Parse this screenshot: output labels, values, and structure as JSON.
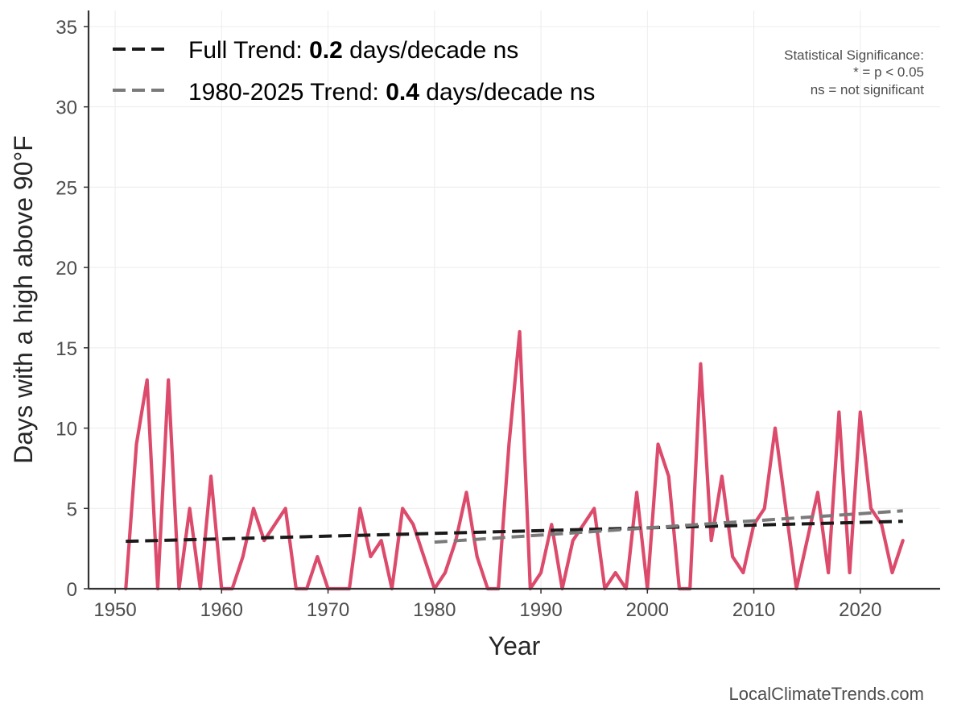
{
  "chart_data": {
    "type": "line",
    "xlabel": "Year",
    "ylabel": "Days with a high above 90°F",
    "xlim": [
      1947.5,
      2027.5
    ],
    "ylim": [
      0,
      36
    ],
    "x_ticks": [
      1950,
      1960,
      1970,
      1980,
      1990,
      2000,
      2010,
      2020
    ],
    "y_ticks": [
      0,
      5,
      10,
      15,
      20,
      25,
      30,
      35
    ],
    "grid": true,
    "colors": {
      "observed": "#dc4b6c",
      "full_trend": "#1a1a1a",
      "recent_trend": "#7a7a7a",
      "grid": "#ececec",
      "axis": "#333333"
    },
    "series": [
      {
        "x": [
          1951,
          1952,
          1953,
          1954,
          1955,
          1956,
          1957,
          1958,
          1959,
          1960,
          1961,
          1962,
          1963,
          1964,
          1966,
          1967,
          1968,
          1969,
          1970,
          1971,
          1972,
          1973,
          1974,
          1975,
          1976,
          1977,
          1978,
          1979,
          1980,
          1981,
          1982,
          1983,
          1984,
          1985,
          1986,
          1987,
          1988,
          1989,
          1990,
          1991,
          1992,
          1993,
          1994,
          1995,
          1996,
          1997,
          1998,
          1999,
          2000,
          2001,
          2002,
          2003,
          2004,
          2005,
          2006,
          2007,
          2008,
          2009,
          2010,
          2011,
          2012,
          2013,
          2014,
          2015,
          2016,
          2017,
          2018,
          2019,
          2020,
          2021,
          2022,
          2023,
          2024
        ],
        "values": [
          0,
          9,
          13,
          0,
          13,
          0,
          5,
          0,
          7,
          0,
          0,
          2,
          5,
          3,
          5,
          0,
          0,
          2,
          0,
          0,
          0,
          5,
          2,
          3,
          0,
          5,
          4,
          2,
          0,
          1,
          3,
          6,
          2,
          0,
          0,
          9,
          16,
          0,
          1,
          4,
          0,
          3,
          4,
          5,
          0,
          1,
          0,
          6,
          0,
          9,
          7,
          0,
          0,
          14,
          3,
          7,
          2,
          1,
          4,
          5,
          10,
          5,
          0,
          3,
          6,
          1,
          11,
          1,
          11,
          5,
          4,
          1,
          3
        ]
      }
    ],
    "trend_lines": [
      {
        "label": "Full Trend:",
        "value": "0.2",
        "unit": "days/decade ns",
        "style": "dashed",
        "x": [
          1951,
          2024
        ],
        "y": [
          2.95,
          4.2
        ]
      },
      {
        "label": "1980-2025 Trend:",
        "value": "0.4",
        "unit": "days/decade ns",
        "style": "dashed",
        "x": [
          1980,
          2024
        ],
        "y": [
          2.9,
          4.85
        ]
      }
    ],
    "annotation": {
      "lines": [
        "Statistical Significance:",
        "* = p < 0.05",
        "ns = not significant"
      ],
      "placement": "top-right"
    },
    "legend_placement": "top-left"
  },
  "credit": "LocalClimateTrends.com"
}
